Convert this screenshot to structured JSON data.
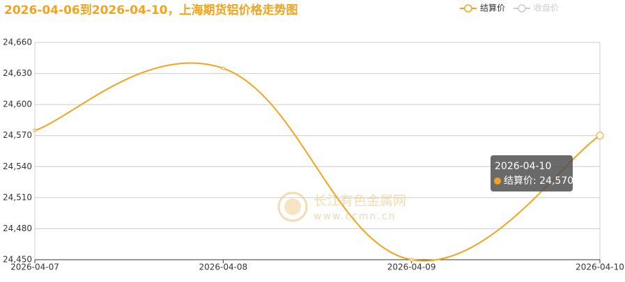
{
  "chart_data": {
    "type": "line",
    "title": "2026-04-06到2026-04-10，上海期货铝价格走势图",
    "categories": [
      "2026-04-07",
      "2026-04-08",
      "2026-04-09",
      "2026-04-10"
    ],
    "series": [
      {
        "name": "结算价",
        "color": "#f5a31a",
        "values": [
          24575,
          24635,
          24450,
          24570
        ]
      },
      {
        "name": "收盘价",
        "color": "#cccccc",
        "values": [
          null,
          null,
          null,
          null
        ]
      }
    ],
    "ylim": [
      24450,
      24660
    ],
    "yticks": [
      {
        "value": 24450,
        "label": "24,450"
      },
      {
        "value": 24480,
        "label": "24,480"
      },
      {
        "value": 24510,
        "label": "24,510"
      },
      {
        "value": 24540,
        "label": "24,540"
      },
      {
        "value": 24570,
        "label": "24,570"
      },
      {
        "value": 24600,
        "label": "24,600"
      },
      {
        "value": 24630,
        "label": "24,630"
      },
      {
        "value": 24660,
        "label": "24,660"
      }
    ],
    "grid": true,
    "tooltip": {
      "title": "2026-04-10",
      "text": "结算价: 24,570"
    },
    "watermark": [
      "长江有色金属网",
      "www.ccmn.cn"
    ]
  }
}
